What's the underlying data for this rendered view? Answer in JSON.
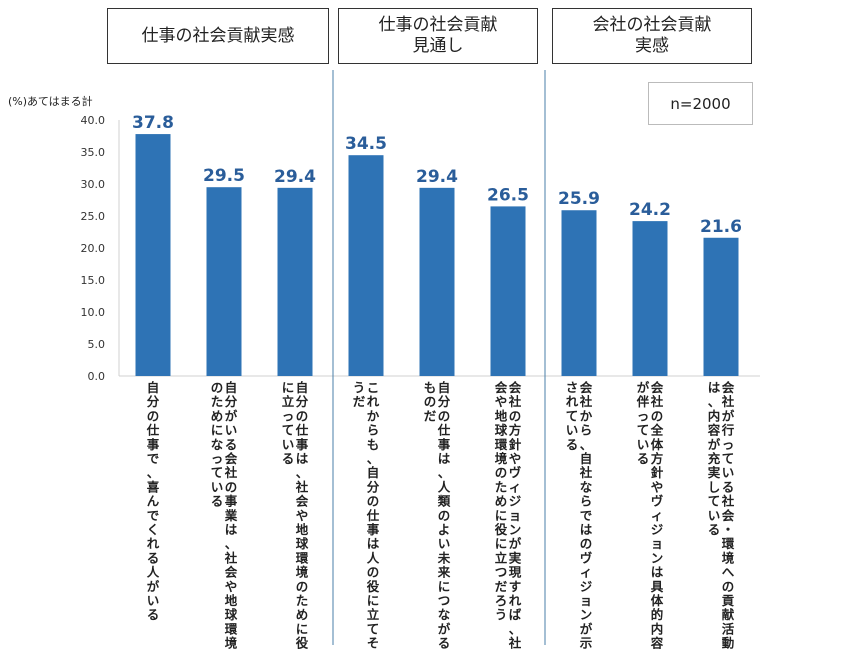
{
  "headers": [
    {
      "label": "仕事の社会貢献実感"
    },
    {
      "label": "仕事の社会貢献\n見通し"
    },
    {
      "label": "会社の社会貢献\n実感"
    }
  ],
  "sample_size": "n=2000",
  "y_unit_label": "(%)あてはまる計",
  "colors": {
    "bar": "#2e73b5",
    "value_label": "#2a5d9a",
    "divider": "#4a7fa8"
  },
  "chart_data": {
    "type": "bar",
    "title": "",
    "ylabel": "(%)あてはまる計",
    "ylim": [
      0,
      40
    ],
    "yticks": [
      "0.0",
      "5.0",
      "10.0",
      "15.0",
      "20.0",
      "25.0",
      "30.0",
      "35.0",
      "40.0"
    ],
    "categories": [
      "自分の仕事で、喜んでくれる人がいる",
      "自分がいる会社の事業は、社会や地球環境のためになっている",
      "自分の仕事は、社会や地球環境のために役に立っている",
      "これからも、自分の仕事は人の役に立てそうだ",
      "自分の仕事は、人類のよい未来につながるものだ",
      "会社の方針やヴィジョンが実現すれば、社会や地球環境のために役に立つだろう",
      "会社から、自社ならではのヴィジョンが示されている",
      "会社の全体方針やヴィジョンは具体的内容が伴っている",
      "会社が行っている社会・環境への貢献活動は、内容が充実している"
    ],
    "value_labels": [
      "37.8",
      "29.5",
      "29.4",
      "34.5",
      "29.4",
      "26.5",
      "25.9",
      "24.2",
      "21.6"
    ],
    "values": [
      37.8,
      29.5,
      29.4,
      34.5,
      29.4,
      26.5,
      25.9,
      24.2,
      21.6
    ],
    "groups": [
      {
        "label": "仕事の社会貢献実感",
        "count": 3
      },
      {
        "label": "仕事の社会貢献見通し",
        "count": 3
      },
      {
        "label": "会社の社会貢献実感",
        "count": 3
      }
    ]
  }
}
